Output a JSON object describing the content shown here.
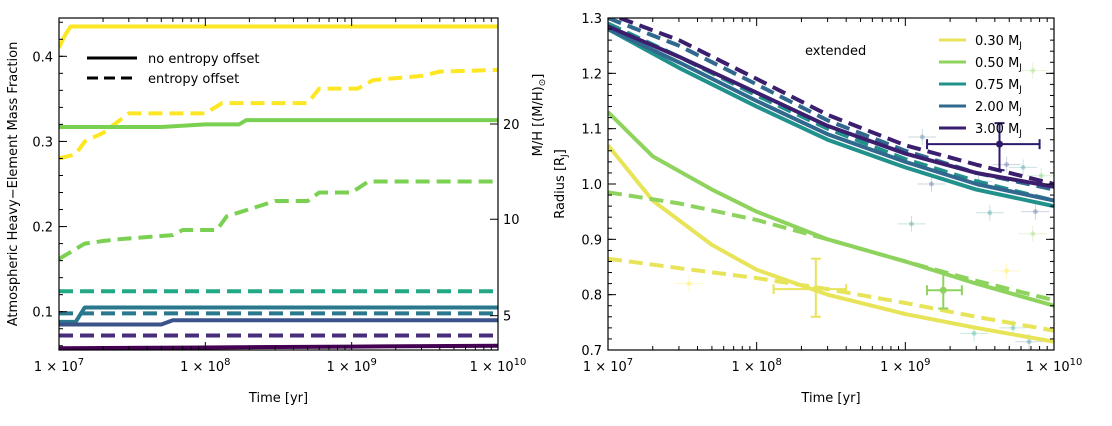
{
  "chart_data": [
    {
      "type": "line",
      "xlabel": "Time [yr]",
      "ylabel": "Atmospheric Heavy−Element Mass Fraction",
      "y2label": "M/H [(M/H)⊙]",
      "xscale": "log",
      "xlim": [
        10000000,
        10000000000
      ],
      "ylim": [
        0.055,
        0.445
      ],
      "xticks": [
        "1 × 10^7",
        "1 × 10^8",
        "1 × 10^9",
        "1 × 10^10"
      ],
      "yticks": [
        0.1,
        0.2,
        0.3,
        0.4
      ],
      "y2ticks": [
        5,
        10,
        20
      ],
      "y2tick_positions": [
        0.0953,
        0.2086,
        0.3205
      ],
      "legend": {
        "placement": "top-left",
        "entries": [
          {
            "label": "no entropy offset",
            "style": "solid"
          },
          {
            "label": "entropy offset",
            "style": "dashed"
          }
        ]
      },
      "series": [
        {
          "color": "#fde725",
          "style": "solid",
          "x": [
            10000000,
            11000000,
            12000000,
            10000000000
          ],
          "y": [
            0.41,
            0.425,
            0.435,
            0.435
          ]
        },
        {
          "color": "#fde725",
          "style": "dashed",
          "x": [
            10000000,
            13000000,
            15000000,
            20000000,
            30000000,
            100000000,
            130000000,
            500000000,
            600000000,
            1100000000,
            1400000000,
            3000000000,
            4000000000,
            10000000000
          ],
          "y": [
            0.28,
            0.285,
            0.3,
            0.31,
            0.333,
            0.333,
            0.345,
            0.345,
            0.362,
            0.362,
            0.372,
            0.377,
            0.382,
            0.384
          ]
        },
        {
          "color": "#7ad151",
          "style": "solid",
          "x": [
            10000000,
            50000000,
            100000000,
            170000000,
            190000000,
            10000000000
          ],
          "y": [
            0.317,
            0.317,
            0.32,
            0.32,
            0.325,
            0.325
          ]
        },
        {
          "color": "#7ad151",
          "style": "dashed",
          "x": [
            10000000,
            12000000,
            15000000,
            20000000,
            25000000,
            60000000,
            70000000,
            120000000,
            140000000,
            300000000,
            500000000,
            600000000,
            1000000000,
            1300000000,
            10000000000
          ],
          "y": [
            0.162,
            0.17,
            0.18,
            0.183,
            0.185,
            0.19,
            0.196,
            0.196,
            0.212,
            0.23,
            0.23,
            0.24,
            0.24,
            0.253,
            0.253
          ]
        },
        {
          "color": "#22a884",
          "style": "dashed",
          "x": [
            10000000,
            10000000000
          ],
          "y": [
            0.124,
            0.124
          ]
        },
        {
          "color": "#2a788e",
          "style": "solid",
          "x": [
            10000000,
            13000000,
            15000000,
            10000000000
          ],
          "y": [
            0.088,
            0.088,
            0.105,
            0.105
          ]
        },
        {
          "color": "#2a788e",
          "style": "dashed",
          "x": [
            10000000,
            10000000000
          ],
          "y": [
            0.098,
            0.098
          ]
        },
        {
          "color": "#3b528b",
          "style": "solid",
          "x": [
            10000000,
            50000000,
            60000000,
            10000000000
          ],
          "y": [
            0.085,
            0.085,
            0.09,
            0.09
          ]
        },
        {
          "color": "#472d7b",
          "style": "dashed",
          "x": [
            10000000,
            10000000000
          ],
          "y": [
            0.072,
            0.072
          ]
        },
        {
          "color": "#440154",
          "style": "solid",
          "x": [
            10000000,
            100000000,
            1000000000,
            10000000000
          ],
          "y": [
            0.057,
            0.058,
            0.059,
            0.06
          ]
        }
      ]
    },
    {
      "type": "line",
      "annotation": "extended",
      "xlabel": "Time [yr]",
      "ylabel": "Radius [RJ]",
      "xscale": "log",
      "xlim": [
        10000000,
        10000000000
      ],
      "ylim": [
        0.7,
        1.3
      ],
      "xticks": [
        "1 × 10^7",
        "1 × 10^8",
        "1 × 10^9",
        "1 × 10^10"
      ],
      "yticks": [
        0.7,
        0.8,
        0.9,
        1.0,
        1.1,
        1.2,
        1.3
      ],
      "legend": {
        "placement": "top-right",
        "entries": [
          {
            "label": "0.30 M",
            "sub": "J",
            "color": "#e8e45a"
          },
          {
            "label": "0.50 M",
            "sub": "J",
            "color": "#8fd35f"
          },
          {
            "label": "0.75 M",
            "sub": "J",
            "color": "#21918c"
          },
          {
            "label": "2.00 M",
            "sub": "J",
            "color": "#31688e"
          },
          {
            "label": "3.00 M",
            "sub": "J",
            "color": "#3b1f6e"
          }
        ]
      },
      "series": [
        {
          "color": "#e8e45a",
          "style": "solid",
          "x": [
            10000000,
            20000000,
            50000000,
            100000000,
            300000000,
            1000000000,
            3000000000,
            10000000000
          ],
          "y": [
            1.07,
            0.97,
            0.89,
            0.845,
            0.8,
            0.765,
            0.74,
            0.715
          ]
        },
        {
          "color": "#e8e45a",
          "style": "dashed",
          "x": [
            10000000,
            30000000,
            100000000,
            300000000,
            1000000000,
            3000000000,
            10000000000
          ],
          "y": [
            0.865,
            0.848,
            0.83,
            0.81,
            0.785,
            0.76,
            0.735
          ]
        },
        {
          "color": "#8fd35f",
          "style": "solid",
          "x": [
            10000000,
            20000000,
            50000000,
            100000000,
            300000000,
            1000000000,
            3000000000,
            10000000000
          ],
          "y": [
            1.13,
            1.05,
            0.99,
            0.95,
            0.9,
            0.86,
            0.82,
            0.78
          ]
        },
        {
          "color": "#8fd35f",
          "style": "dashed",
          "x": [
            10000000,
            30000000,
            100000000,
            300000000,
            1000000000,
            3000000000,
            10000000000
          ],
          "y": [
            0.985,
            0.965,
            0.935,
            0.9,
            0.86,
            0.825,
            0.79
          ]
        },
        {
          "color": "#21918c",
          "style": "solid",
          "x": [
            10000000,
            30000000,
            100000000,
            300000000,
            1000000000,
            3000000000,
            10000000000
          ],
          "y": [
            1.28,
            1.21,
            1.14,
            1.08,
            1.03,
            0.99,
            0.96
          ]
        },
        {
          "color": "#21918c",
          "style": "dashed",
          "x": [
            10000000,
            30000000,
            100000000,
            300000000,
            1000000000,
            3000000000,
            10000000000
          ],
          "y": [
            1.29,
            1.23,
            1.16,
            1.1,
            1.045,
            1.005,
            0.97
          ]
        },
        {
          "color": "#31688e",
          "style": "solid",
          "x": [
            10000000,
            30000000,
            100000000,
            300000000,
            1000000000,
            3000000000,
            10000000000
          ],
          "y": [
            1.28,
            1.22,
            1.15,
            1.09,
            1.04,
            1.0,
            0.97
          ]
        },
        {
          "color": "#31688e",
          "style": "dashed",
          "x": [
            10000000,
            30000000,
            100000000,
            300000000,
            1000000000,
            3000000000,
            10000000000
          ],
          "y": [
            1.3,
            1.25,
            1.18,
            1.115,
            1.06,
            1.02,
            0.99
          ]
        },
        {
          "color": "#3b1f6e",
          "style": "solid",
          "x": [
            10000000,
            30000000,
            100000000,
            300000000,
            1000000000,
            3000000000,
            10000000000
          ],
          "y": [
            1.285,
            1.23,
            1.165,
            1.105,
            1.055,
            1.02,
            0.995
          ]
        },
        {
          "color": "#3b1f6e",
          "style": "dashed",
          "x": [
            12000000,
            30000000,
            100000000,
            300000000,
            1000000000,
            3000000000,
            10000000000
          ],
          "y": [
            1.3,
            1.26,
            1.19,
            1.125,
            1.07,
            1.035,
            1.0
          ]
        }
      ],
      "data_points": [
        {
          "x": 250000000,
          "y": 0.81,
          "xerr": [
            130000000,
            400000000
          ],
          "yerr": [
            0.76,
            0.865
          ],
          "color": "#e8e45a"
        },
        {
          "x": 1800000000,
          "y": 0.808,
          "xerr": [
            1400000000,
            2400000000
          ],
          "yerr": [
            0.775,
            0.84
          ],
          "color": "#8fd35f"
        },
        {
          "x": 4300000000,
          "y": 1.072,
          "xerr": [
            1400000000,
            8000000000
          ],
          "yerr": [
            1.025,
            1.11
          ],
          "color": "#2e1a6b"
        }
      ],
      "background_points": [
        {
          "x": 1300000000,
          "y": 1.085,
          "color": "#31688e"
        },
        {
          "x": 4800000000,
          "y": 1.035,
          "color": "#3b528b"
        },
        {
          "x": 6200000000,
          "y": 1.03,
          "color": "#21918c"
        },
        {
          "x": 7200000000,
          "y": 1.205,
          "color": "#8fd35f"
        },
        {
          "x": 3100000000,
          "y": 1.005,
          "color": "#21918c"
        },
        {
          "x": 8200000000,
          "y": 1.015,
          "color": "#5ec962"
        },
        {
          "x": 1500000000,
          "y": 1.0,
          "color": "#3b528b"
        },
        {
          "x": 3700000000,
          "y": 0.948,
          "color": "#21918c"
        },
        {
          "x": 7500000000,
          "y": 0.95,
          "color": "#3b528b"
        },
        {
          "x": 1100000000,
          "y": 0.928,
          "color": "#21918c"
        },
        {
          "x": 7200000000,
          "y": 0.91,
          "color": "#8fd35f"
        },
        {
          "x": 4800000000,
          "y": 0.843,
          "color": "#fde725"
        },
        {
          "x": 35000000,
          "y": 0.82,
          "color": "#fde725"
        },
        {
          "x": 2900000000,
          "y": 0.73,
          "color": "#22a884"
        },
        {
          "x": 5300000000,
          "y": 0.74,
          "color": "#22a884"
        },
        {
          "x": 6800000000,
          "y": 0.715,
          "color": "#2a788e"
        }
      ]
    }
  ]
}
